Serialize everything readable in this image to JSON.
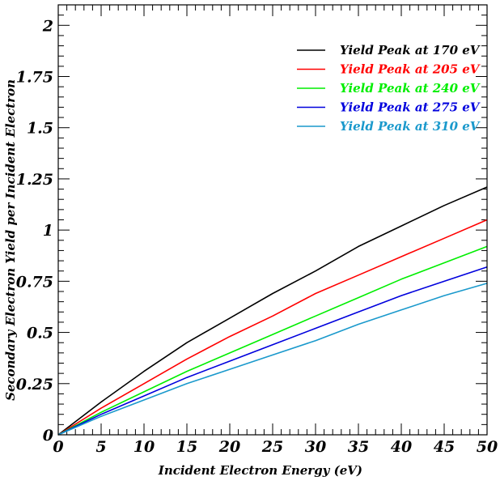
{
  "chart_data": {
    "type": "line",
    "xlabel": "Incident Electron Energy (eV)",
    "ylabel": "Secondary Electron Yield per Incident Electron",
    "xlim": [
      0,
      50
    ],
    "ylim": [
      0,
      2.1
    ],
    "x_ticks": [
      0,
      5,
      10,
      15,
      20,
      25,
      30,
      35,
      40,
      45,
      50
    ],
    "x_tick_labels": [
      "0",
      "5",
      "10",
      "15",
      "20",
      "25",
      "30",
      "35",
      "40",
      "45",
      "50"
    ],
    "y_ticks": [
      0,
      0.25,
      0.5,
      0.75,
      1,
      1.25,
      1.5,
      1.75,
      2
    ],
    "y_tick_labels": [
      "0",
      "0.25",
      "0.5",
      "0.75",
      "1",
      "1.25",
      "1.5",
      "1.75",
      "2"
    ],
    "grid": false,
    "legend_position": "top-right",
    "x": [
      0,
      5,
      10,
      15,
      20,
      25,
      30,
      35,
      40,
      45,
      50
    ],
    "series": [
      {
        "name": "Yield Peak at 170 eV",
        "color": "#000000",
        "values": [
          0,
          0.16,
          0.31,
          0.45,
          0.57,
          0.69,
          0.8,
          0.92,
          1.02,
          1.12,
          1.21
        ]
      },
      {
        "name": "Yield Peak at 205 eV",
        "color": "#ff0000",
        "values": [
          0,
          0.13,
          0.25,
          0.37,
          0.48,
          0.58,
          0.69,
          0.78,
          0.87,
          0.96,
          1.05
        ]
      },
      {
        "name": "Yield Peak at 240 eV",
        "color": "#00ee00",
        "values": [
          0,
          0.11,
          0.21,
          0.31,
          0.4,
          0.49,
          0.58,
          0.67,
          0.76,
          0.84,
          0.92
        ]
      },
      {
        "name": "Yield Peak at 275 eV",
        "color": "#0000dd",
        "values": [
          0,
          0.1,
          0.19,
          0.28,
          0.36,
          0.44,
          0.52,
          0.6,
          0.68,
          0.75,
          0.82
        ]
      },
      {
        "name": "Yield Peak at 310 eV",
        "color": "#1a99cc",
        "values": [
          0,
          0.09,
          0.17,
          0.25,
          0.32,
          0.39,
          0.46,
          0.54,
          0.61,
          0.68,
          0.74
        ]
      }
    ]
  }
}
